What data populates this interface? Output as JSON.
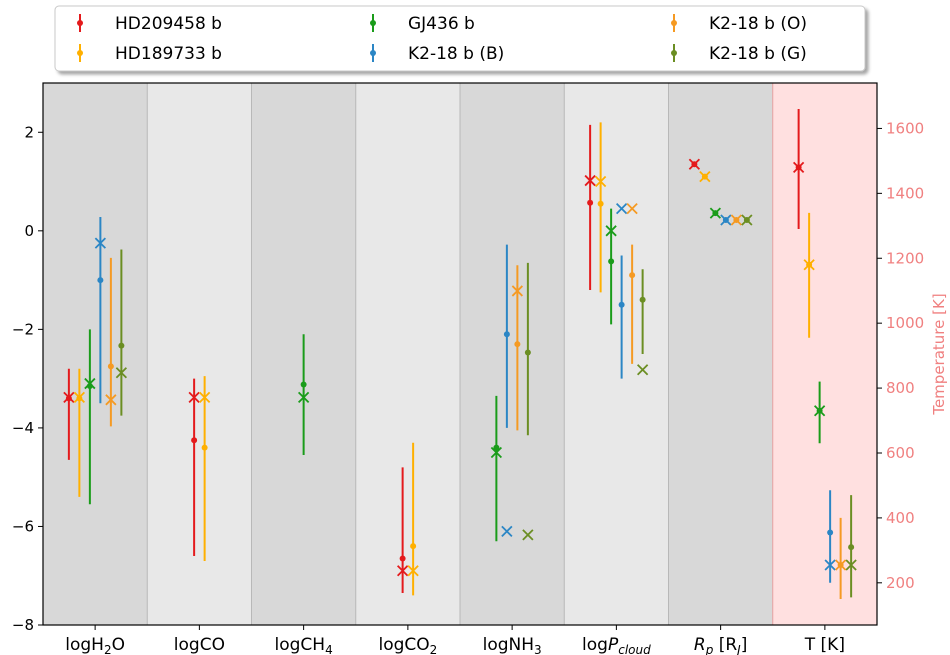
{
  "chart_data": {
    "type": "errorbar",
    "title": "",
    "categories": [
      "logH2O",
      "logCO",
      "logCH4",
      "logCO2",
      "logNH3",
      "logPcloud",
      "Rp [RJ]",
      "T [K]"
    ],
    "ylim": [
      -8,
      3
    ],
    "yticks": [
      -8,
      -6,
      -4,
      -2,
      0,
      2
    ],
    "y2label": "Temperature [K]",
    "y2lim": [
      70,
      1740
    ],
    "y2ticks": [
      200,
      400,
      600,
      800,
      1000,
      1200,
      1400,
      1600
    ],
    "legend_position": "top",
    "grid": false,
    "colors": {
      "band_dark": "#d8d8d8",
      "band_light": "#e8e8e8",
      "band_temperature": "#ffe0e0",
      "y2_axis": "#f08080"
    },
    "series": [
      {
        "name": "HD209458 b",
        "color": "#e41a1c",
        "points": [
          {
            "category": 0,
            "mean": -3.4,
            "low": -4.65,
            "high": -2.8,
            "truth": -3.38
          },
          {
            "category": 1,
            "mean": -4.25,
            "low": -6.6,
            "high": -3.0,
            "truth": -3.38
          },
          {
            "category": 3,
            "mean": -6.65,
            "low": -7.35,
            "high": -4.8,
            "truth": -6.9
          },
          {
            "category": 5,
            "mean": 0.57,
            "low": -1.2,
            "high": 2.15,
            "truth": 1.02
          },
          {
            "category": 6,
            "mean": 1.35,
            "low": 1.35,
            "high": 1.35,
            "truth": 1.35
          },
          {
            "category": 7,
            "mean": 1480,
            "low": 1290,
            "high": 1660,
            "truth": 1480
          }
        ]
      },
      {
        "name": "HD189733 b",
        "color": "#ffb000",
        "points": [
          {
            "category": 0,
            "mean": -3.4,
            "low": -5.4,
            "high": -2.8,
            "truth": -3.38
          },
          {
            "category": 1,
            "mean": -4.4,
            "low": -6.7,
            "high": -2.95,
            "truth": -3.38
          },
          {
            "category": 3,
            "mean": -6.4,
            "low": -7.4,
            "high": -4.3,
            "truth": -6.9
          },
          {
            "category": 5,
            "mean": 0.55,
            "low": -1.25,
            "high": 2.2,
            "truth": 1.0
          },
          {
            "category": 6,
            "mean": 1.1,
            "low": 1.1,
            "high": 1.1,
            "truth": 1.1
          },
          {
            "category": 7,
            "mean": 1180,
            "low": 955,
            "high": 1340,
            "truth": 1180
          }
        ]
      },
      {
        "name": "GJ436 b",
        "color": "#1a9c1a",
        "points": [
          {
            "category": 0,
            "mean": -3.15,
            "low": -5.55,
            "high": -2.0,
            "truth": -3.1
          },
          {
            "category": 2,
            "mean": -3.12,
            "low": -4.55,
            "high": -2.1,
            "truth": -3.38
          },
          {
            "category": 4,
            "mean": -4.4,
            "low": -6.3,
            "high": -3.35,
            "truth": -4.5
          },
          {
            "category": 5,
            "mean": -0.62,
            "low": -1.9,
            "high": 0.45,
            "truth": 0.0
          },
          {
            "category": 6,
            "mean": 0.36,
            "low": 0.36,
            "high": 0.36,
            "truth": 0.36
          },
          {
            "category": 7,
            "mean": 730,
            "low": 630,
            "high": 820,
            "truth": 730
          }
        ]
      },
      {
        "name": "K2-18 b (B)",
        "color": "#2b86c5",
        "points": [
          {
            "category": 0,
            "mean": -1.0,
            "low": -3.5,
            "high": 0.28,
            "truth": -0.25
          },
          {
            "category": 4,
            "mean": -2.1,
            "low": -4.0,
            "high": -0.28,
            "truth": -6.1
          },
          {
            "category": 5,
            "mean": -1.5,
            "low": -3.0,
            "high": -0.5,
            "truth": 0.45
          },
          {
            "category": 6,
            "mean": 0.22,
            "low": 0.22,
            "high": 0.22,
            "truth": 0.22
          },
          {
            "category": 7,
            "mean": 355,
            "low": 200,
            "high": 485,
            "truth": 255
          }
        ]
      },
      {
        "name": "K2-18 b (O)",
        "color": "#f59a23",
        "points": [
          {
            "category": 0,
            "mean": -2.75,
            "low": -3.97,
            "high": -0.55,
            "truth": -3.43
          },
          {
            "category": 4,
            "mean": -2.3,
            "low": -4.05,
            "high": -0.7,
            "truth": -1.22
          },
          {
            "category": 5,
            "mean": -0.9,
            "low": -2.7,
            "high": -0.28,
            "truth": 0.45
          },
          {
            "category": 6,
            "mean": 0.22,
            "low": 0.22,
            "high": 0.22,
            "truth": 0.22
          },
          {
            "category": 7,
            "mean": 255,
            "low": 150,
            "high": 400,
            "truth": 255
          }
        ]
      },
      {
        "name": "K2-18 b (G)",
        "color": "#6b8e23",
        "points": [
          {
            "category": 0,
            "mean": -2.33,
            "low": -3.75,
            "high": -0.38,
            "truth": -2.88
          },
          {
            "category": 4,
            "mean": -2.47,
            "low": -4.15,
            "high": -0.65,
            "truth": -6.17
          },
          {
            "category": 5,
            "mean": -1.4,
            "low": -2.5,
            "high": -0.78,
            "truth": -2.82
          },
          {
            "category": 6,
            "mean": 0.22,
            "low": 0.22,
            "high": 0.22,
            "truth": 0.22
          },
          {
            "category": 7,
            "mean": 310,
            "low": 155,
            "high": 470,
            "truth": 255
          }
        ]
      }
    ]
  }
}
